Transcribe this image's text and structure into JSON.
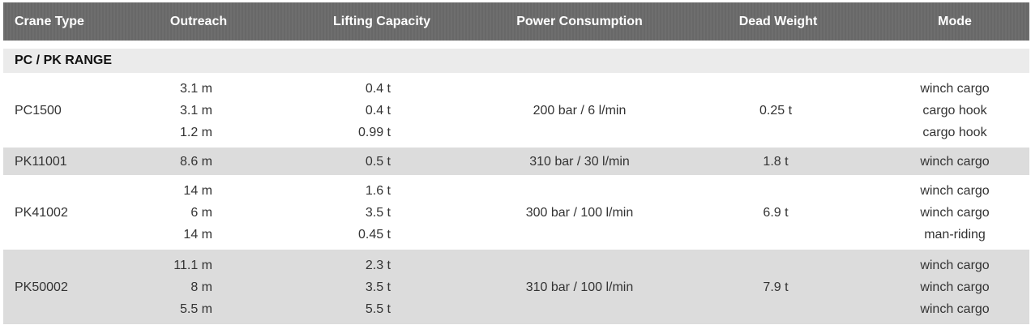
{
  "table": {
    "header": [
      "Crane Type",
      "Outreach",
      "Lifting Capacity",
      "Power Consumption",
      "Dead Weight",
      "Mode"
    ],
    "section": "PC / PK RANGE",
    "rows": [
      {
        "crane": "PC1500",
        "outreach": [
          "3.1 m",
          "3.1 m",
          "1.2 m"
        ],
        "lifting": [
          "0.4 t",
          "0.4 t",
          "0.99 t"
        ],
        "power": "200 bar / 6 l/min",
        "weight": "0.25 t",
        "mode": [
          "winch cargo",
          "cargo hook",
          "cargo hook"
        ]
      },
      {
        "crane": "PK11001",
        "outreach": [
          "8.6 m"
        ],
        "lifting": [
          "0.5 t"
        ],
        "power": "310 bar / 30 l/min",
        "weight": "1.8 t",
        "mode": [
          "winch cargo"
        ]
      },
      {
        "crane": "PK41002",
        "outreach": [
          "14 m",
          "6 m",
          "14 m"
        ],
        "lifting": [
          "1.6 t",
          "3.5 t",
          "0.45 t"
        ],
        "power": "300 bar / 100 l/min",
        "weight": "6.9 t",
        "mode": [
          "winch cargo",
          "winch cargo",
          "man-riding"
        ]
      },
      {
        "crane": "PK50002",
        "outreach": [
          "11.1 m",
          "8 m",
          "5.5 m"
        ],
        "lifting": [
          "2.3 t",
          "3.5 t",
          "5.5 t"
        ],
        "power": "310 bar / 100 l/min",
        "weight": "7.9 t",
        "mode": [
          "winch cargo",
          "winch cargo",
          "winch cargo"
        ]
      }
    ]
  }
}
